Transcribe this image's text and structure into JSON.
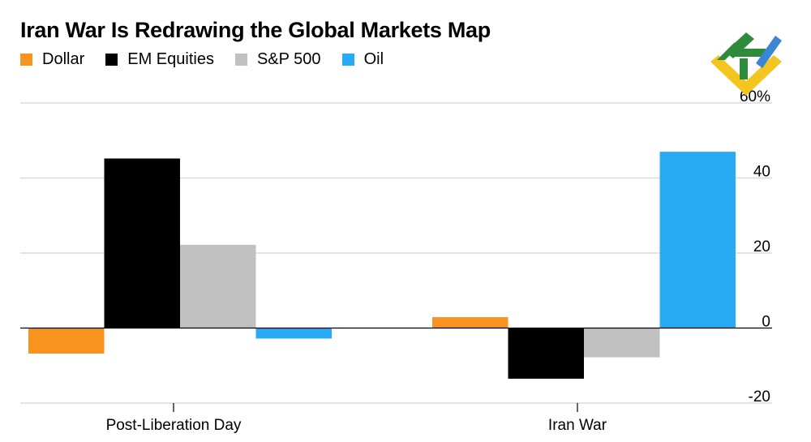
{
  "chart_data": {
    "type": "bar",
    "title": "Iran War Is Redrawing the Global Markets Map",
    "categories": [
      "Post-Liberation Day",
      "Iran War"
    ],
    "series": [
      {
        "name": "Dollar",
        "color": "#f7931e",
        "values": [
          -6.8,
          2.9
        ]
      },
      {
        "name": "EM Equities",
        "color": "#000000",
        "values": [
          45.2,
          -13.5
        ]
      },
      {
        "name": "S&P 500",
        "color": "#c0c0c0",
        "values": [
          22.2,
          -7.8
        ]
      },
      {
        "name": "Oil",
        "color": "#29aaf4",
        "values": [
          -2.8,
          47.0
        ]
      }
    ],
    "ylim": [
      -20,
      60
    ],
    "y_ticks": [
      -20,
      0,
      20,
      40,
      60
    ],
    "y_tick_labels": [
      "-20",
      "0",
      "20",
      "40",
      "60%"
    ],
    "xlabel": "",
    "ylabel": "",
    "grid": true,
    "legend": "top-left"
  }
}
